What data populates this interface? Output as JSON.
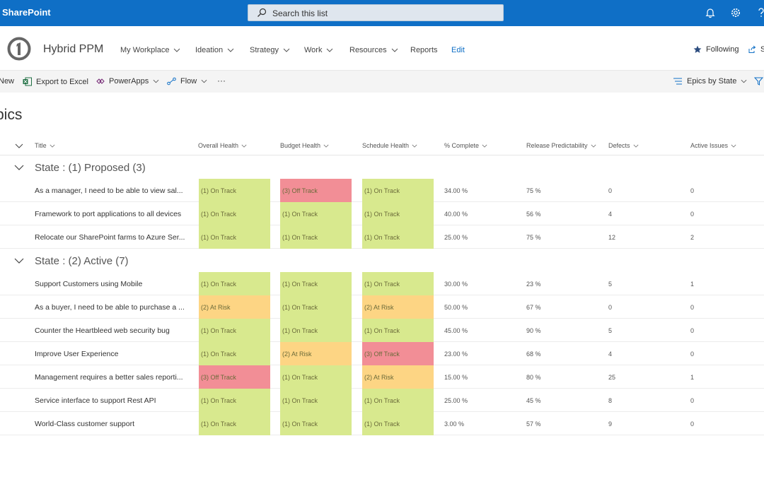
{
  "suite": {
    "brand": "SharePoint",
    "search_placeholder": "Search this list"
  },
  "site": {
    "title": "Hybrid PPM",
    "nav": [
      "My Workplace",
      "Ideation",
      "Strategy",
      "Work",
      "Resources",
      "Reports",
      "Edit"
    ],
    "following": "Following",
    "share": "S"
  },
  "commands": {
    "new": "New",
    "export": "Export to Excel",
    "powerapps": "PowerApps",
    "flow": "Flow",
    "more": "···",
    "view": "Epics by State"
  },
  "list_title": "pics",
  "columns": [
    "Title",
    "Overall Health",
    "Budget Health",
    "Schedule Health",
    "% Complete",
    "Release Predictability",
    "Defects",
    "Active Issues"
  ],
  "groups": [
    {
      "label": "State : (1) Proposed (3)",
      "rows": [
        {
          "title": "As a manager, I need to be able to view sal...",
          "overall": "(1) On Track",
          "budget": "(3) Off Track",
          "schedule": "(1) On Track",
          "complete": "34.00 %",
          "predictability": "75 %",
          "defects": "0",
          "issues": "0"
        },
        {
          "title": "Framework to port applications to all devices",
          "overall": "(1) On Track",
          "budget": "(1) On Track",
          "schedule": "(1) On Track",
          "complete": "40.00 %",
          "predictability": "56 %",
          "defects": "4",
          "issues": "0"
        },
        {
          "title": "Relocate our SharePoint farms to Azure Ser...",
          "overall": "(1) On Track",
          "budget": "(1) On Track",
          "schedule": "(1) On Track",
          "complete": "25.00 %",
          "predictability": "75 %",
          "defects": "12",
          "issues": "2"
        }
      ]
    },
    {
      "label": "State : (2) Active (7)",
      "rows": [
        {
          "title": "Support Customers using Mobile",
          "overall": "(1) On Track",
          "budget": "(1) On Track",
          "schedule": "(1) On Track",
          "complete": "30.00 %",
          "predictability": "23 %",
          "defects": "5",
          "issues": "1"
        },
        {
          "title": "As a buyer, I need to be able to purchase a ...",
          "overall": "(2) At Risk",
          "budget": "(1) On Track",
          "schedule": "(2) At Risk",
          "complete": "50.00 %",
          "predictability": "67 %",
          "defects": "0",
          "issues": "0"
        },
        {
          "title": "Counter the Heartbleed web security bug",
          "overall": "(1) On Track",
          "budget": "(1) On Track",
          "schedule": "(1) On Track",
          "complete": "45.00 %",
          "predictability": "90 %",
          "defects": "5",
          "issues": "0"
        },
        {
          "title": "Improve User Experience",
          "overall": "(1) On Track",
          "budget": "(2) At Risk",
          "schedule": "(3) Off Track",
          "complete": "23.00 %",
          "predictability": "68 %",
          "defects": "4",
          "issues": "0"
        },
        {
          "title": "Management requires a better sales reporti...",
          "overall": "(3) Off Track",
          "budget": "(1) On Track",
          "schedule": "(2) At Risk",
          "complete": "15.00 %",
          "predictability": "80 %",
          "defects": "25",
          "issues": "1"
        },
        {
          "title": "Service interface to support Rest API",
          "overall": "(1) On Track",
          "budget": "(1) On Track",
          "schedule": "(1) On Track",
          "complete": "25.00 %",
          "predictability": "45 %",
          "defects": "8",
          "issues": "0"
        },
        {
          "title": "World-Class customer support",
          "overall": "(1) On Track",
          "budget": "(1) On Track",
          "schedule": "(1) On Track",
          "complete": "3.00 %",
          "predictability": "57 %",
          "defects": "9",
          "issues": "0"
        }
      ]
    }
  ],
  "health_colors": {
    "on_track": "#d8e98e",
    "at_risk": "#fdd584",
    "off_track": "#f28e96"
  },
  "colors": {
    "suite_bar": "#0f6fc6",
    "accent": "#0f6fc6"
  }
}
